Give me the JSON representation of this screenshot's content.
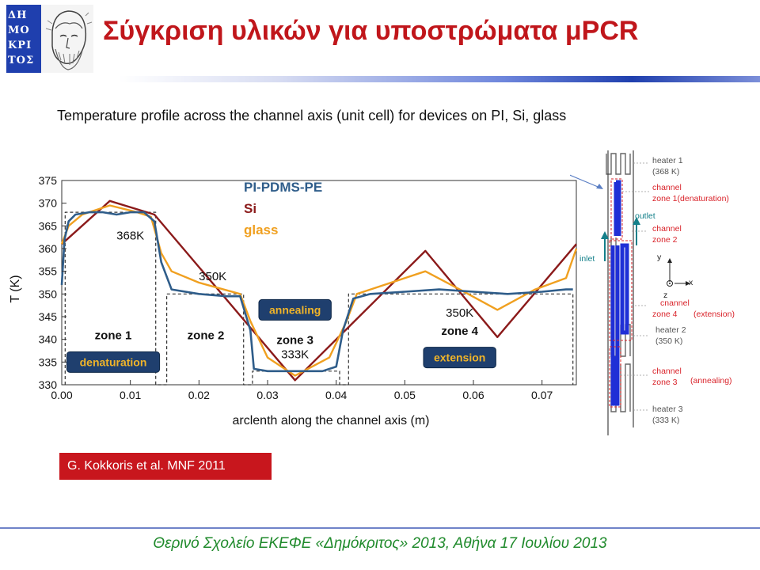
{
  "slide": {
    "title": "Σύγκριση υλικών για υποστρώματα μPCR",
    "logo_text": [
      "ΔΗ",
      "ΜΟ",
      "ΚΡΙ",
      "ΤΟΣ"
    ],
    "caption": "Temperature profile across the channel axis (unit cell) for devices on PI, Si, glass",
    "citation": "G. Kokkoris et al. MNF 2011",
    "footer": "Θερινό Σχολείο ΕΚΕΦΕ «Δημόκριτος» 2013, Αθήνα 17 Ιουλίου 2013"
  },
  "chart_data": {
    "type": "line",
    "xlabel": "arclenth along the channel axis (m)",
    "ylabel": "T (K)",
    "xlim": [
      0.0,
      0.075
    ],
    "ylim": [
      330,
      375
    ],
    "xticks": [
      "0.00",
      "0.01",
      "0.02",
      "0.03",
      "0.04",
      "0.05",
      "0.06",
      "0.07"
    ],
    "yticks": [
      "330",
      "335",
      "340",
      "345",
      "350",
      "355",
      "360",
      "365",
      "370",
      "375"
    ],
    "legend_position": "top-center",
    "series": [
      {
        "name": "PI-PDMS-PE",
        "color": "#2f5d8a",
        "x": [
          0.0,
          0.0004,
          0.001,
          0.002,
          0.004,
          0.006,
          0.008,
          0.01,
          0.012,
          0.0135,
          0.0145,
          0.016,
          0.02,
          0.024,
          0.026,
          0.0275,
          0.028,
          0.03,
          0.034,
          0.038,
          0.04,
          0.041,
          0.0425,
          0.045,
          0.05,
          0.055,
          0.06,
          0.065,
          0.07,
          0.0735,
          0.0745
        ],
        "y": [
          352,
          362,
          366,
          367.5,
          368,
          368,
          367.5,
          368,
          368,
          366,
          357,
          351,
          350,
          349.5,
          349.5,
          342,
          333.5,
          333,
          333,
          333,
          334,
          342,
          349,
          350,
          350.5,
          351,
          350.5,
          350,
          350.5,
          351,
          351
        ]
      },
      {
        "name": "Si",
        "color": "#8b1a1a",
        "x": [
          0.0,
          0.007,
          0.0135,
          0.034,
          0.053,
          0.0635,
          0.075
        ],
        "y": [
          361,
          370.5,
          367.5,
          331,
          359.5,
          340.5,
          361
        ]
      },
      {
        "name": "glass",
        "color": "#f0a020",
        "x": [
          0.0,
          0.001,
          0.003,
          0.007,
          0.011,
          0.013,
          0.0145,
          0.016,
          0.02,
          0.026,
          0.0275,
          0.03,
          0.034,
          0.039,
          0.0415,
          0.043,
          0.045,
          0.053,
          0.058,
          0.0635,
          0.069,
          0.0735,
          0.075
        ],
        "y": [
          361,
          365,
          367.5,
          369.5,
          368,
          367,
          359,
          355,
          352.5,
          350,
          344,
          336,
          332,
          336,
          344,
          350,
          351,
          355,
          351,
          346.5,
          351,
          353.5,
          360
        ]
      },
      {
        "name": "",
        "color": "#333333",
        "x": [
          0.0005,
          0.0005,
          0.0137,
          0.0137,
          0.0153,
          0.0153,
          0.0265,
          0.0265,
          0.0278,
          0.0278,
          0.0405,
          0.0405,
          0.0418,
          0.0418,
          0.0745,
          0.0745
        ],
        "y": [
          330,
          368,
          368,
          330,
          330,
          350,
          350,
          330,
          330,
          333,
          333,
          330,
          330,
          350,
          350,
          330
        ]
      }
    ],
    "annotations": [
      {
        "text": "368K",
        "x": 0.01,
        "y": 362
      },
      {
        "text": "350K",
        "x": 0.022,
        "y": 353
      },
      {
        "text": "333K",
        "x": 0.034,
        "y": 335.8
      },
      {
        "text": "350K",
        "x": 0.058,
        "y": 345
      },
      {
        "text": "zone 1",
        "x": 0.0075,
        "y": 340
      },
      {
        "text": "zone 2",
        "x": 0.021,
        "y": 340
      },
      {
        "text": "zone 3",
        "x": 0.034,
        "y": 339
      },
      {
        "text": "zone 4",
        "x": 0.058,
        "y": 341
      }
    ],
    "zone_boxes": [
      {
        "text": "denaturation",
        "x": 0.0075,
        "y": 335
      },
      {
        "text": "annealing",
        "x": 0.034,
        "y": 346.5
      },
      {
        "text": "extension",
        "x": 0.058,
        "y": 336
      }
    ]
  },
  "schematic": {
    "labels": {
      "heater1": "heater 1",
      "heater1_temp": "(368 K)",
      "ch1a": "channel",
      "ch1b": "zone 1(denaturation)",
      "outlet": "outlet",
      "ch2a": "channel",
      "ch2b": "zone 2",
      "inlet": "inlet",
      "axis_y": "y",
      "axis_x": "x",
      "axis_z": "z",
      "ch4a": "cnannel",
      "ch4b": "zone 4",
      "ch4c": "(extension)",
      "heater2": "heater 2",
      "heater2_temp": "(350 K)",
      "ch3a": "channel",
      "ch3b": "zone 3",
      "ch3c": "(annealing)",
      "heater3": "heater 3",
      "heater3_temp": "(333 K)"
    },
    "colors": {
      "channel": "#1f2fd6",
      "label": "#d9232a",
      "gray": "#555555",
      "teal": "#14808a"
    }
  }
}
